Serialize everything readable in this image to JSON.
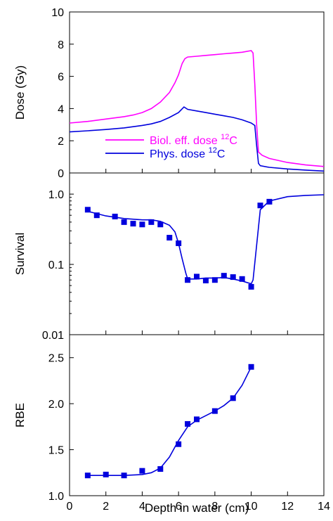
{
  "chart_data": [
    {
      "type": "line",
      "panel": "dose",
      "ylabel": "Dose (Gy)",
      "xlim": [
        0,
        14
      ],
      "ylim": [
        0,
        10
      ],
      "yticks": [
        0,
        2,
        4,
        6,
        8,
        10
      ],
      "ytick_labels": [
        "0",
        "2",
        "4",
        "6",
        "8",
        "10"
      ],
      "legend_position": "center-left",
      "series": [
        {
          "name": "Biol. eff. dose 12C",
          "name_parts": {
            "text": "Biol. eff. dose ",
            "sup": "12",
            "suffix": "C"
          },
          "color": "#ff00ff",
          "x": [
            0,
            1,
            2,
            3,
            3.5,
            4,
            4.5,
            5,
            5.5,
            5.8,
            6.0,
            6.2,
            6.35,
            6.5,
            7,
            7.5,
            8,
            8.5,
            9,
            9.5,
            10,
            10.1,
            10.2,
            10.3,
            10.4,
            10.6,
            11,
            12,
            13,
            14
          ],
          "values": [
            3.1,
            3.2,
            3.35,
            3.5,
            3.6,
            3.75,
            4.0,
            4.4,
            5.0,
            5.6,
            6.1,
            6.8,
            7.1,
            7.2,
            7.25,
            7.3,
            7.35,
            7.4,
            7.45,
            7.5,
            7.6,
            7.45,
            5.5,
            3.0,
            1.3,
            1.1,
            0.9,
            0.65,
            0.5,
            0.4
          ]
        },
        {
          "name": "Phys. dose 12C",
          "name_parts": {
            "text": "Phys. dose ",
            "sup": "12",
            "suffix": "C"
          },
          "color": "#0000dd",
          "x": [
            0,
            1,
            2,
            3,
            4,
            4.5,
            5,
            5.5,
            6,
            6.3,
            6.5,
            7,
            7.5,
            8,
            8.5,
            9,
            9.5,
            10,
            10.2,
            10.3,
            10.4,
            10.5,
            11,
            12,
            13,
            14
          ],
          "values": [
            2.55,
            2.62,
            2.7,
            2.8,
            2.95,
            3.05,
            3.2,
            3.45,
            3.75,
            4.1,
            3.95,
            3.85,
            3.75,
            3.65,
            3.55,
            3.45,
            3.3,
            3.1,
            2.95,
            1.7,
            0.6,
            0.45,
            0.35,
            0.25,
            0.18,
            0.12
          ]
        }
      ]
    },
    {
      "type": "scatter",
      "panel": "survival",
      "ylabel": "Survival",
      "scale": "log",
      "xlim": [
        0,
        14
      ],
      "ylim": [
        0.01,
        2
      ],
      "yticks": [
        0.01,
        0.1,
        1.0
      ],
      "ytick_labels": [
        "0.01",
        "0.1",
        "1.0"
      ],
      "series": [
        {
          "kind": "points",
          "color": "#0000dd",
          "x": [
            1,
            1.5,
            2.5,
            3,
            3.5,
            4,
            4.5,
            5,
            5.5,
            6,
            6.5,
            7,
            7.5,
            8,
            8.5,
            9,
            9.5,
            10,
            10.5,
            11
          ],
          "values": [
            0.6,
            0.5,
            0.48,
            0.4,
            0.38,
            0.37,
            0.4,
            0.37,
            0.24,
            0.2,
            0.06,
            0.067,
            0.059,
            0.06,
            0.069,
            0.066,
            0.062,
            0.048,
            0.69,
            0.78
          ]
        },
        {
          "kind": "fit",
          "color": "#0000dd",
          "x": [
            1,
            2,
            3,
            4,
            4.5,
            5,
            5.5,
            5.8,
            6,
            6.2,
            6.4,
            6.5,
            7,
            7.5,
            8,
            8.5,
            9,
            9.5,
            10,
            10.1,
            10.5,
            11,
            12,
            13,
            14
          ],
          "values": [
            0.57,
            0.49,
            0.45,
            0.43,
            0.43,
            0.41,
            0.36,
            0.29,
            0.2,
            0.12,
            0.075,
            0.062,
            0.062,
            0.064,
            0.064,
            0.065,
            0.062,
            0.058,
            0.053,
            0.06,
            0.6,
            0.8,
            0.92,
            0.96,
            0.98
          ]
        }
      ]
    },
    {
      "type": "scatter",
      "panel": "rbe",
      "ylabel": "RBE",
      "xlabel": "Depth in water (cm)",
      "xlim": [
        0,
        14
      ],
      "ylim": [
        1.0,
        2.75
      ],
      "yticks": [
        1.0,
        1.5,
        2.0,
        2.5
      ],
      "ytick_labels": [
        "1.0",
        "1.5",
        "2.0",
        "2.5"
      ],
      "xticks": [
        0,
        2,
        4,
        6,
        8,
        10,
        12,
        14
      ],
      "xtick_labels": [
        "0",
        "2",
        "4",
        "6",
        "8",
        "10",
        "12",
        "14"
      ],
      "series": [
        {
          "kind": "points",
          "color": "#0000dd",
          "x": [
            1,
            2,
            3,
            4,
            5,
            6,
            6.5,
            7,
            8,
            9,
            10
          ],
          "values": [
            1.22,
            1.23,
            1.22,
            1.27,
            1.29,
            1.56,
            1.78,
            1.83,
            1.92,
            2.06,
            2.4
          ]
        },
        {
          "kind": "fit",
          "color": "#0000dd",
          "x": [
            1,
            2,
            3,
            4,
            4.5,
            5,
            5.5,
            6,
            6.5,
            7,
            7.5,
            8,
            8.5,
            9,
            9.5,
            10
          ],
          "values": [
            1.22,
            1.22,
            1.22,
            1.23,
            1.25,
            1.3,
            1.42,
            1.6,
            1.75,
            1.82,
            1.87,
            1.92,
            1.98,
            2.06,
            2.2,
            2.4
          ]
        }
      ]
    }
  ]
}
